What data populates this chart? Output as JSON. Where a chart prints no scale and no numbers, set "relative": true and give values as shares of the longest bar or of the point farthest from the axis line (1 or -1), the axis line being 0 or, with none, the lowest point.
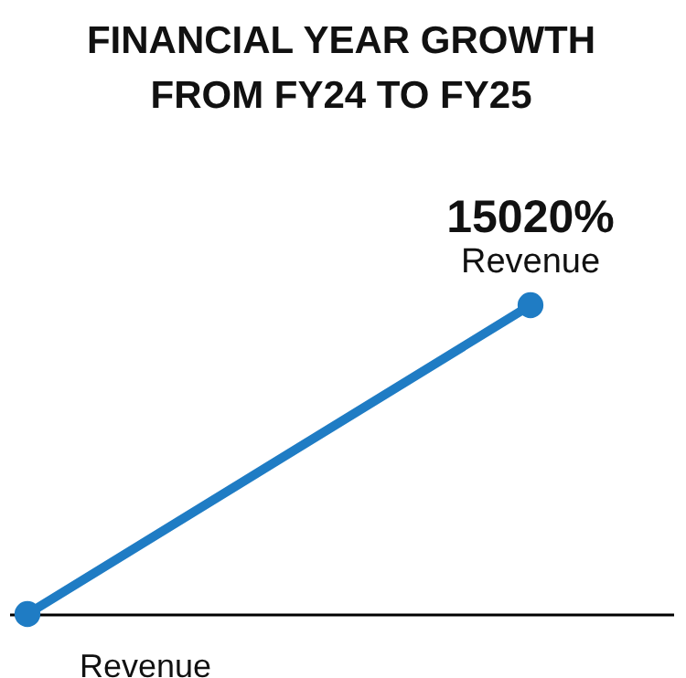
{
  "chart_data": {
    "type": "line",
    "title": "FINANCIAL YEAR GROWTH\nFROM FY24 TO FY25",
    "xlabel": "Revenue",
    "categories": [
      null,
      null
    ],
    "relative": true,
    "marker": "circle",
    "annotations": [
      "15020%"
    ],
    "series": [
      {
        "name": "Revenue",
        "color": "#1f7cc4",
        "values": [
          0,
          1
        ]
      }
    ]
  }
}
